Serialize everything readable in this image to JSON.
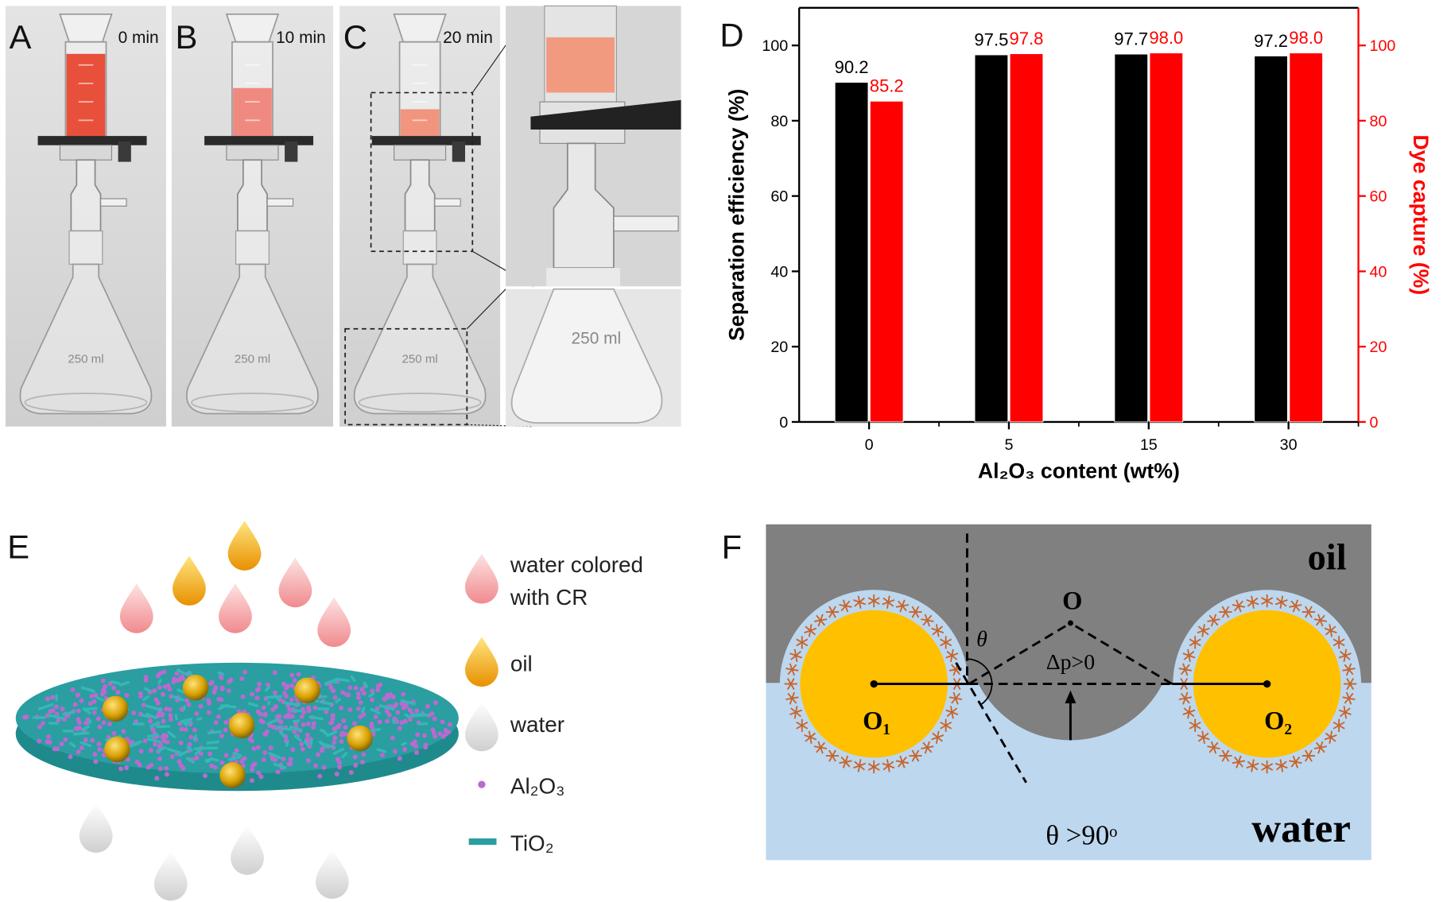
{
  "panels": {
    "photos": [
      {
        "label": "A",
        "time": "0 min",
        "flask": "250 ml"
      },
      {
        "label": "B",
        "time": "10 min",
        "flask": "250 ml"
      },
      {
        "label": "C",
        "time": "20 min",
        "flask": "250 ml"
      }
    ],
    "zoom_flask": "250 ml",
    "chart_label": "D",
    "schematic": {
      "label": "E",
      "legend": [
        "water colored",
        "with CR",
        "oil",
        "water",
        "Al₂O₃",
        "TiO₂"
      ]
    },
    "diagram": {
      "label": "F",
      "top": "oil",
      "bottom": "water",
      "center": "O",
      "left": "O₁",
      "right": "O₂",
      "angle": "θ",
      "pressure": "Δp>0",
      "condition": "θ >90ᵒ"
    }
  },
  "chart_data": {
    "type": "bar",
    "xlabel": "Al₂O₃ content (wt%)",
    "ylabel": "Separation efficiency (%)",
    "y2label": "Dye capture (%)",
    "categories": [
      "0",
      "5",
      "15",
      "30"
    ],
    "series": [
      {
        "color": "#000000",
        "values": [
          90.2,
          97.5,
          97.7,
          97.2
        ]
      },
      {
        "color": "#ff0000",
        "axis": "y2",
        "values": [
          85.2,
          97.8,
          98.0,
          98.0
        ],
        "value_labels": [
          "85.2",
          "97.8",
          "98.0",
          "98.0"
        ]
      }
    ],
    "ylim": [
      0,
      110
    ],
    "yticks": [
      0,
      20,
      40,
      60,
      80,
      100
    ],
    "y2lim": [
      0,
      110
    ],
    "y2ticks": [
      0,
      20,
      40,
      60,
      80,
      100
    ]
  }
}
